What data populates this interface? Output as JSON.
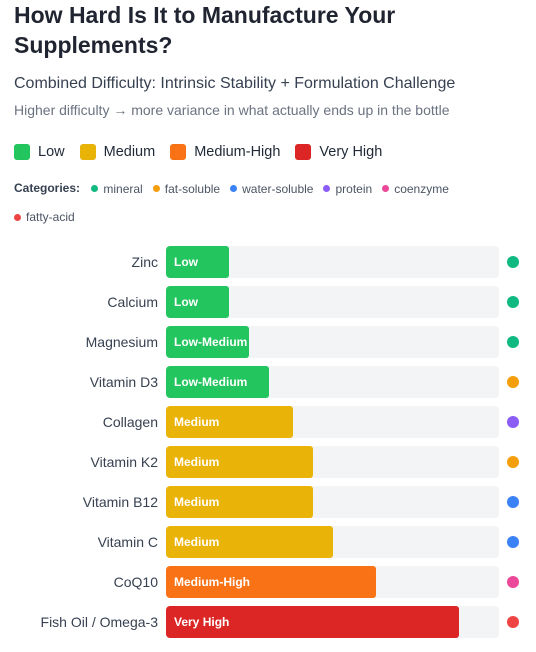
{
  "header": {
    "title": "How Hard Is It to Manufacture Your Supplements?",
    "subtitle": "Combined Difficulty: Intrinsic Stability + Formulation Challenge",
    "note": "Higher difficulty → more variance in what actually ends up in the bottle"
  },
  "legend": [
    {
      "label": "Low",
      "color": "#22c55e"
    },
    {
      "label": "Medium",
      "color": "#eab308"
    },
    {
      "label": "Medium-High",
      "color": "#f97316"
    },
    {
      "label": "Very High",
      "color": "#dc2626"
    }
  ],
  "categories_label": "Categories:",
  "category_legend": [
    {
      "label": "mineral",
      "color": "#10b981"
    },
    {
      "label": "fat-soluble",
      "color": "#f59e0b"
    },
    {
      "label": "water-soluble",
      "color": "#3b82f6"
    },
    {
      "label": "protein",
      "color": "#8b5cf6"
    },
    {
      "label": "coenzyme",
      "color": "#ec4899"
    },
    {
      "label": "fatty-acid",
      "color": "#ef4444"
    }
  ],
  "chart_data": {
    "type": "bar",
    "orientation": "horizontal",
    "scale_max": 10,
    "categories": [
      "Zinc",
      "Calcium",
      "Magnesium",
      "Vitamin D3",
      "Collagen",
      "Vitamin K2",
      "Vitamin B12",
      "Vitamin C",
      "CoQ10",
      "Fish Oil / Omega-3"
    ],
    "values": [
      1.9,
      1.9,
      2.5,
      3.1,
      3.8,
      4.4,
      4.4,
      5.0,
      6.3,
      8.8
    ],
    "labels": [
      "Low",
      "Low",
      "Low-Medium",
      "Low-Medium",
      "Medium",
      "Medium",
      "Medium",
      "Medium",
      "Medium-High",
      "Very High"
    ],
    "bar_colors": [
      "#22c55e",
      "#22c55e",
      "#22c55e",
      "#22c55e",
      "#eab308",
      "#eab308",
      "#eab308",
      "#eab308",
      "#f97316",
      "#dc2626"
    ],
    "category": [
      "mineral",
      "mineral",
      "mineral",
      "fat-soluble",
      "protein",
      "fat-soluble",
      "water-soluble",
      "water-soluble",
      "coenzyme",
      "fatty-acid"
    ]
  }
}
